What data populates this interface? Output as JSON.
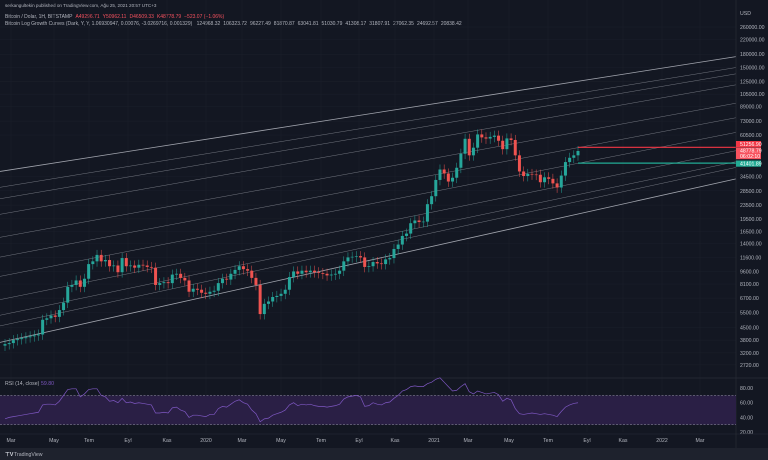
{
  "header": {
    "published": "serkangultekin published on TradingView.com, Ağu 25, 2021 20:57 UTC+3",
    "symbol": "Bitcoin / Dolar, 1H, BITSTAMP",
    "open": "A49296.71",
    "high": "Y50962.11",
    "low": "D46509.33",
    "close": "K48778.79",
    "change": "−523.07 (−1.06%)",
    "indicator": "Bitcoin Log Growth Curves (Dark, Y, Y, 1.06930947, 0.00076, -3.0269716, 0.001329)",
    "indicator_values": [
      "124968.32",
      "106323.72",
      "96227.49",
      "81870.87",
      "63041.81",
      "51030.79",
      "41308.17",
      "31807.91",
      "27062.35",
      "24692.57",
      "20838.42"
    ]
  },
  "colors": {
    "background": "#131722",
    "up": "#26a69a",
    "down": "#ef5350",
    "curve": "#b2b5be",
    "rsi": "#7e57c2",
    "rsi_band": "#2a1f45",
    "red_line": "#f23645",
    "green_line": "#22ab94"
  },
  "price_axis": {
    "currency": "USD",
    "labels": [
      "260000.00",
      "220000.00",
      "180000.00",
      "150000.00",
      "125000.00",
      "105000.00",
      "89000.00",
      "73000.00",
      "60500.00",
      "34500.00",
      "28500.00",
      "23500.00",
      "19500.00",
      "16500.00",
      "14000.00",
      "11600.00",
      "9600.00",
      "8100.00",
      "6700.00",
      "5500.00",
      "4500.00",
      "3800.00",
      "3200.00",
      "2720.00"
    ],
    "tags": [
      {
        "text": "51256.90",
        "value": 51256.9,
        "color": "#f23645"
      },
      {
        "text": "48778.79",
        "value": 48000,
        "color": "#f7525f"
      },
      {
        "text": "06:02:10",
        "value": 45600,
        "color": "#f7525f"
      },
      {
        "text": "41401.89",
        "value": 41401.89,
        "color": "#22ab94"
      }
    ]
  },
  "rsi": {
    "label": "RSI (14, close)",
    "value": "59.80",
    "axis": [
      "80.00",
      "60.00",
      "40.00",
      "20.00"
    ],
    "upper": 70,
    "lower": 30
  },
  "time_axis": [
    "Mar",
    "May",
    "Tem",
    "Eyl",
    "Kas",
    "2020",
    "Mar",
    "May",
    "Tem",
    "Eyl",
    "Kas",
    "2021",
    "Mar",
    "May",
    "Tem",
    "Eyl",
    "Kas",
    "2022",
    "Mar"
  ],
  "footer": {
    "brand": "TradingView"
  },
  "chart_data": {
    "type": "candlestick",
    "title": "Bitcoin / Dolar, 1H, BITSTAMP",
    "y_scale": "log",
    "ylim": [
      2720,
      260000
    ],
    "x_range": [
      "2019-02",
      "2022-03"
    ],
    "weekly_close": [
      3600,
      3650,
      3800,
      3850,
      3900,
      3950,
      4000,
      4050,
      4100,
      5000,
      5100,
      5300,
      5200,
      5700,
      6300,
      7800,
      8000,
      8500,
      7800,
      8700,
      10600,
      11000,
      12000,
      11000,
      11200,
      10300,
      10400,
      9500,
      11500,
      10300,
      10400,
      10100,
      10500,
      10400,
      10200,
      10100,
      8000,
      8200,
      8300,
      8200,
      9200,
      9300,
      8800,
      8500,
      7300,
      7600,
      7500,
      7200,
      7100,
      7300,
      7400,
      8200,
      8700,
      8600,
      9300,
      9800,
      10300,
      9900,
      9700,
      8800,
      8000,
      5400,
      6200,
      6400,
      6800,
      6900,
      7100,
      7500,
      8900,
      9600,
      9300,
      9700,
      9500,
      9700,
      9500,
      9400,
      9300,
      9100,
      9200,
      9300,
      9700,
      11000,
      11600,
      11700,
      11800,
      11600,
      10200,
      10300,
      10900,
      10700,
      10600,
      11300,
      11500,
      13000,
      13800,
      15500,
      16000,
      18400,
      19100,
      18700,
      18800,
      23800,
      26500,
      33000,
      38000,
      36000,
      32300,
      34000,
      38900,
      47000,
      57500,
      46000,
      51000,
      61000,
      58600,
      57700,
      59000,
      60000,
      56000,
      50000,
      57800,
      56600,
      46000,
      37000,
      34800,
      35800,
      35500,
      35400,
      32000,
      34200,
      33500,
      31500,
      29800,
      35000,
      42000,
      44500,
      46000,
      48778.79
    ],
    "growth_curves": [
      {
        "current": 124968.32,
        "at_start": 37400
      },
      {
        "current": 106323.72,
        "at_start": 30200
      },
      {
        "current": 96227.49,
        "at_start": 25900
      },
      {
        "current": 81870.87,
        "at_start": 21000
      },
      {
        "current": 63041.81,
        "at_start": 15400
      },
      {
        "current": 51030.79,
        "at_start": 11800
      },
      {
        "current": 41308.17,
        "at_start": 9100
      },
      {
        "current": 31807.91,
        "at_start": 6650
      },
      {
        "current": 27062.35,
        "at_start": 5390
      },
      {
        "current": 24692.57,
        "at_start": 4670
      },
      {
        "current": 20838.42,
        "at_start": 3740
      }
    ],
    "horizontal_lines": [
      {
        "value": 51256.9,
        "color": "red"
      },
      {
        "value": 41401.89,
        "color": "green"
      }
    ],
    "rsi_values": [
      38,
      40,
      41,
      42,
      43,
      44,
      45,
      46,
      47,
      57,
      58,
      58,
      57,
      62,
      70,
      78,
      79,
      79,
      68,
      72,
      78,
      79,
      79,
      70,
      68,
      62,
      63,
      60,
      66,
      60,
      61,
      59,
      60,
      59,
      58,
      57,
      46,
      46,
      47,
      46,
      53,
      54,
      50,
      48,
      40,
      43,
      43,
      42,
      41,
      44,
      44,
      52,
      55,
      54,
      58,
      62,
      64,
      60,
      58,
      50,
      45,
      34,
      38,
      39,
      43,
      45,
      47,
      50,
      57,
      60,
      56,
      58,
      57,
      58,
      56,
      55,
      55,
      54,
      55,
      56,
      58,
      65,
      68,
      69,
      70,
      68,
      55,
      56,
      60,
      58,
      57,
      60,
      61,
      66,
      70,
      76,
      78,
      82,
      83,
      82,
      82,
      86,
      88,
      92,
      94,
      88,
      82,
      76,
      77,
      82,
      86,
      75,
      72,
      76,
      74,
      72,
      73,
      74,
      71,
      62,
      66,
      64,
      52,
      45,
      44,
      45,
      46,
      45,
      44,
      45,
      44,
      43,
      41,
      48,
      54,
      57,
      59,
      60
    ],
    "rsi_range": [
      0,
      100
    ]
  }
}
